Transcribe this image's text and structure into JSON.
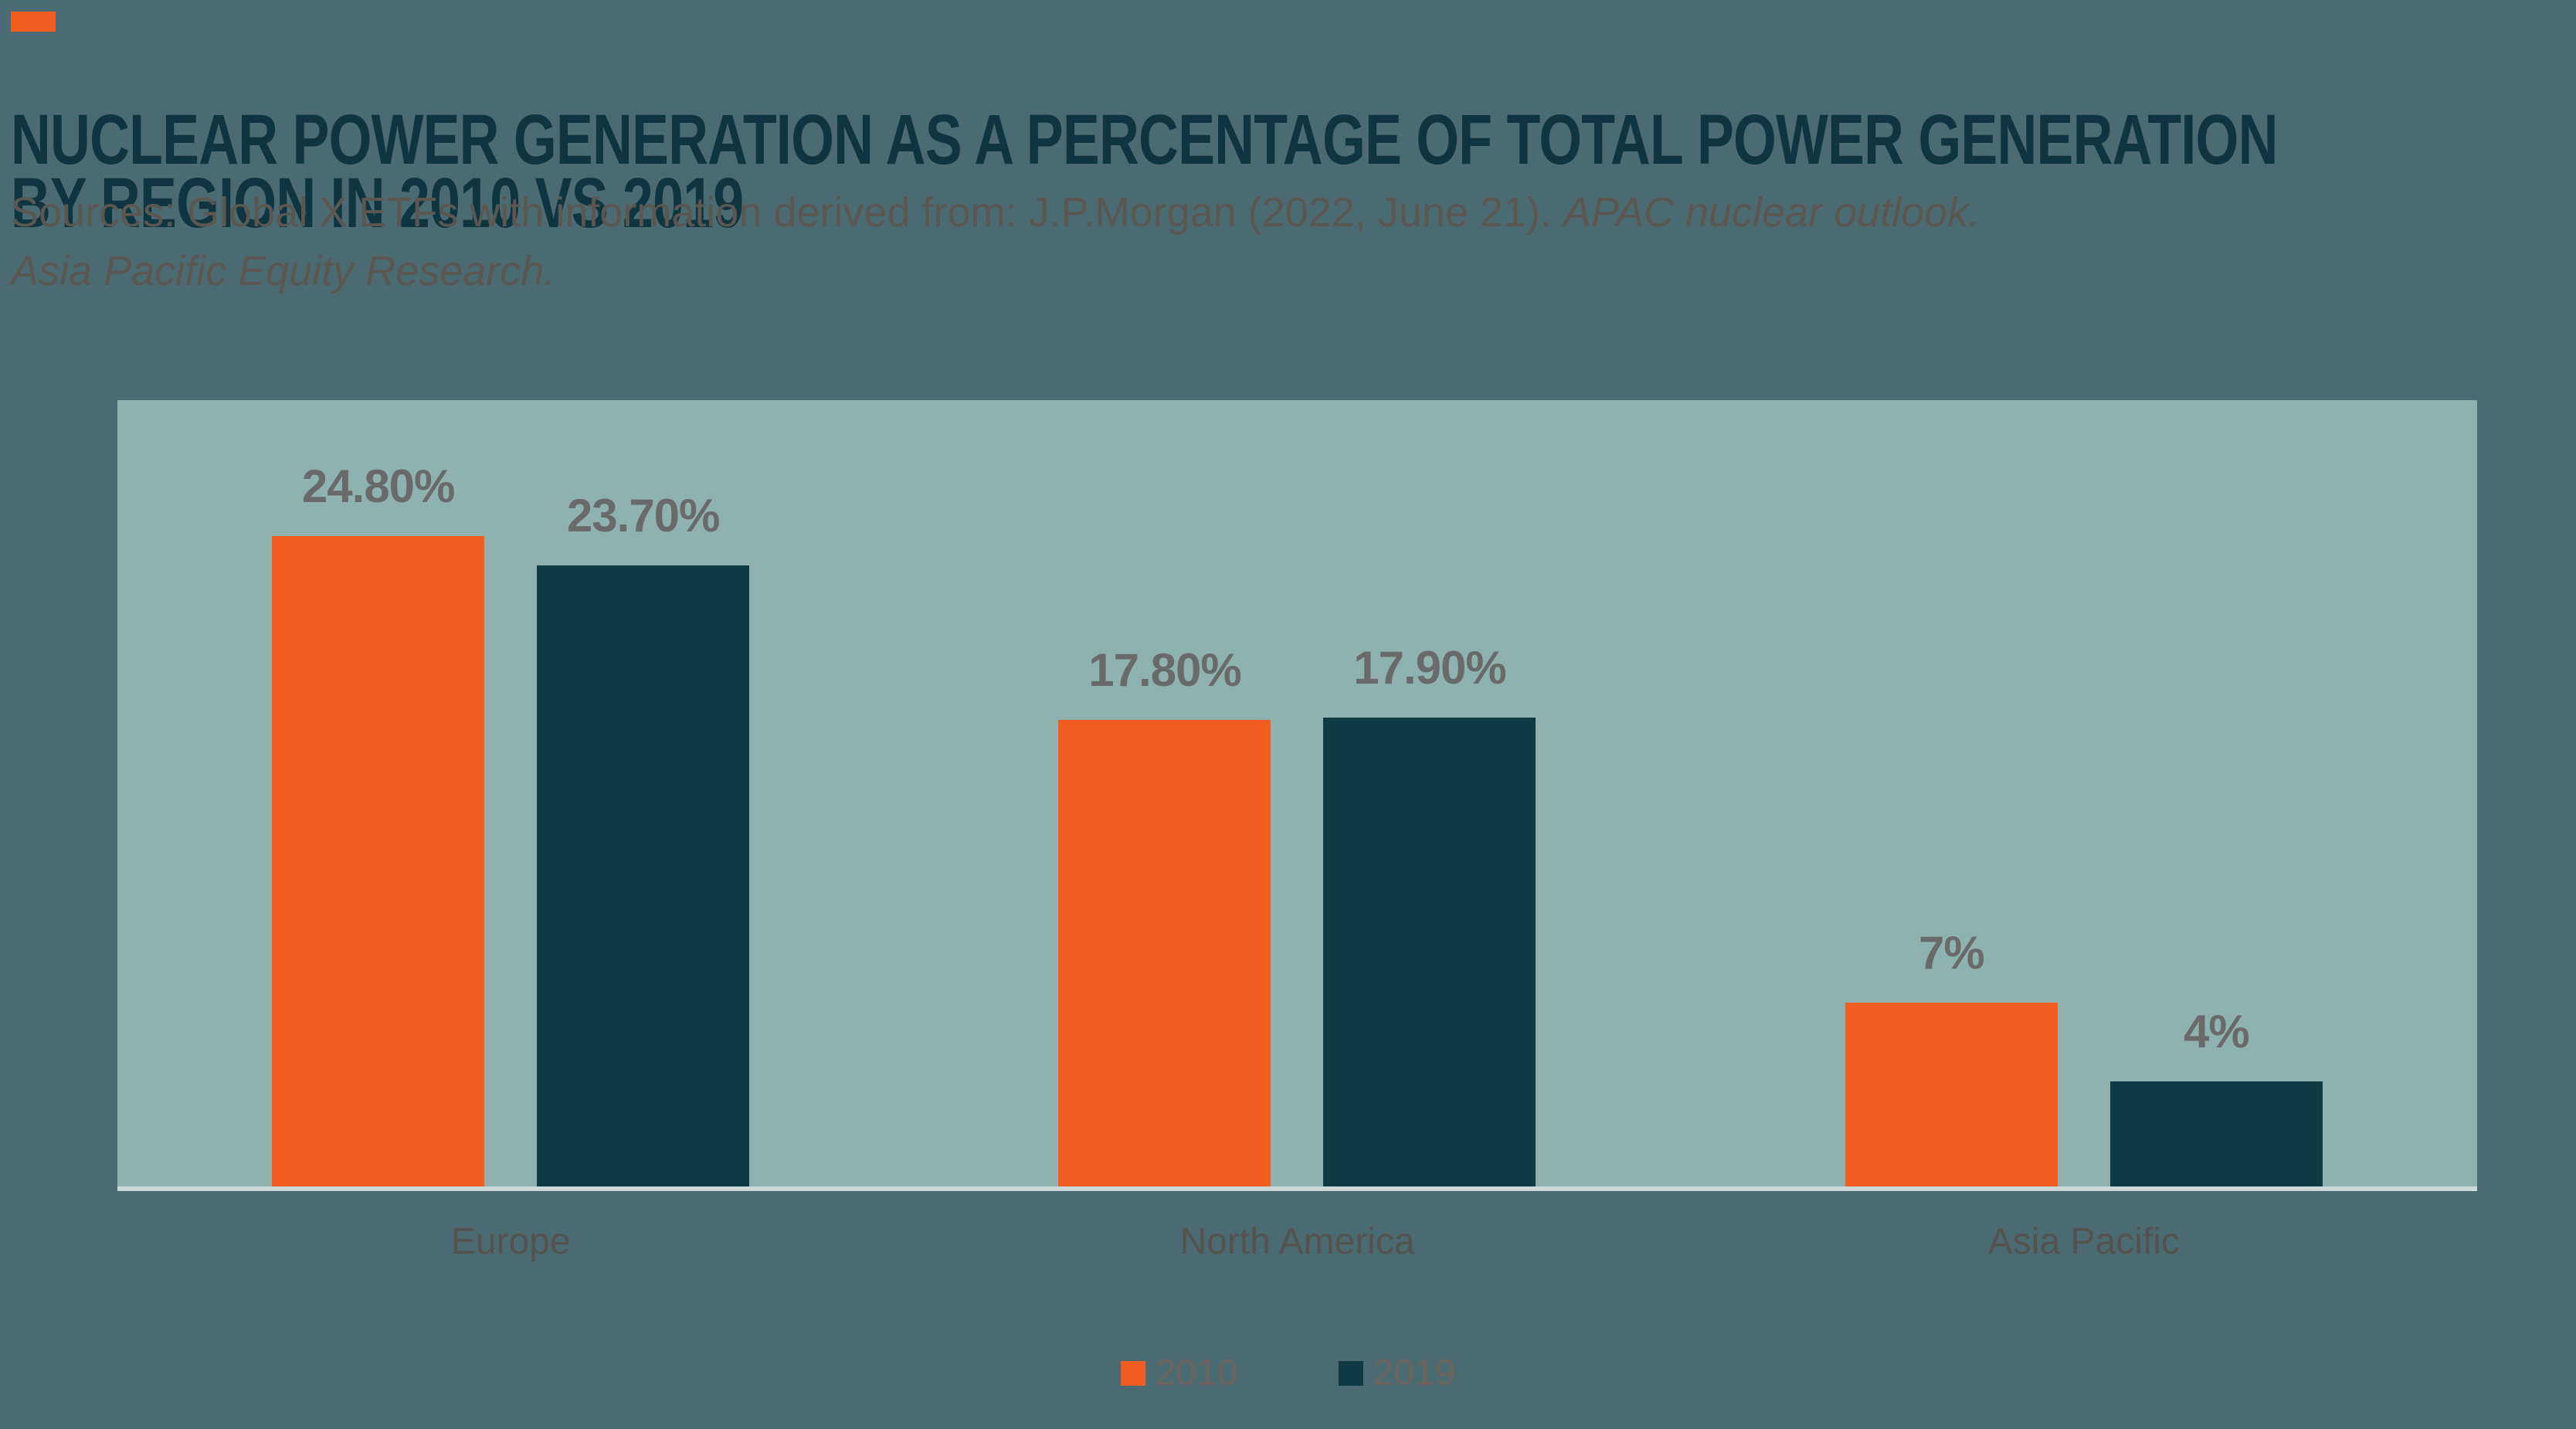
{
  "page": {
    "background": "#4c6a71"
  },
  "colors": {
    "page_bg": "#4c6a71",
    "plot_bg": "#8fb2b1",
    "axis_line": "#ccd9d8",
    "accent": "#f15c20",
    "title_color": "#0f3540",
    "source_color": "#5c5650",
    "value_label": "#6a6a6a",
    "cat_label": "#55524d",
    "legend_label": "#6e635c"
  },
  "header": {
    "title_line1": "NUCLEAR POWER GENERATION AS A PERCENTAGE OF TOTAL POWER GENERATION",
    "title_line2": "BY REGION IN 2010 VS 2019",
    "source_prefix": "Sources: Global X ETFs with information derived from: J.P.Morgan (2022, June 21). ",
    "source_italic1": "APAC nuclear outlook.",
    "source_italic2": "Asia Pacific Equity Research."
  },
  "chart_data": {
    "type": "bar",
    "title": "NUCLEAR POWER GENERATION AS A PERCENTAGE OF TOTAL POWER GENERATION BY REGION IN 2010 VS 2019",
    "categories": [
      "Europe",
      "North America",
      "Asia Pacific"
    ],
    "series": [
      {
        "name": "2010",
        "color": "#f15c20",
        "values": [
          24.8,
          17.8,
          7
        ],
        "labels": [
          "24.80%",
          "17.80%",
          "7%"
        ]
      },
      {
        "name": "2019",
        "color": "#0d3c44",
        "values": [
          23.7,
          17.9,
          4
        ],
        "labels": [
          "23.70%",
          "17.90%",
          "4%"
        ]
      }
    ],
    "xlabel": "",
    "ylabel": "",
    "ylim": [
      0,
      30
    ],
    "grid": false,
    "value_labels_shown": true,
    "legend_position": "bottom"
  }
}
